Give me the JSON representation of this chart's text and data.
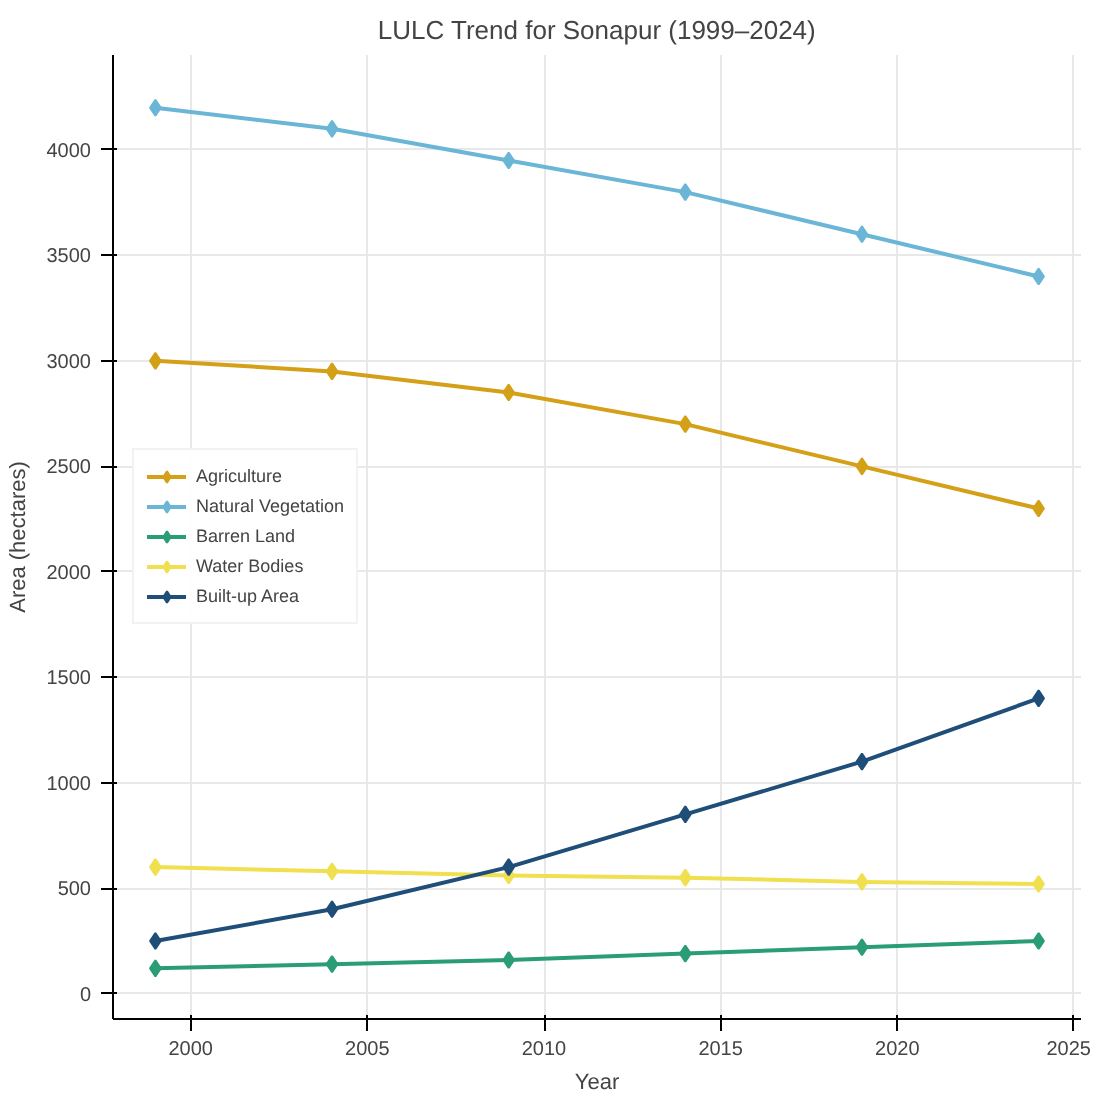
{
  "chart_data": {
    "type": "line",
    "title": "LULC Trend for Sonapur (1999–2024)",
    "xlabel": "Year",
    "ylabel": "Area (hectares)",
    "x": [
      1999,
      2004,
      2009,
      2014,
      2019,
      2024
    ],
    "series": [
      {
        "name": "Agriculture",
        "color": "#d4a017",
        "values": [
          3000,
          2950,
          2850,
          2700,
          2500,
          2300
        ]
      },
      {
        "name": "Natural Vegetation",
        "color": "#6bb6d6",
        "values": [
          4200,
          4100,
          3950,
          3800,
          3600,
          3400
        ]
      },
      {
        "name": "Barren Land",
        "color": "#2a9d76",
        "values": [
          120,
          140,
          160,
          190,
          220,
          250
        ]
      },
      {
        "name": "Water Bodies",
        "color": "#f0e050",
        "values": [
          600,
          580,
          560,
          550,
          530,
          520
        ]
      },
      {
        "name": "Built-up Area",
        "color": "#1f4e79",
        "values": [
          250,
          400,
          600,
          850,
          1100,
          1400
        ]
      }
    ],
    "xlim": [
      1997.8,
      2025.2
    ],
    "ylim": [
      -120,
      4450
    ],
    "xticks": [
      2000,
      2005,
      2010,
      2015,
      2020,
      2025
    ],
    "yticks": [
      0,
      500,
      1000,
      1500,
      2000,
      2500,
      3000,
      3500,
      4000
    ],
    "grid": true,
    "legend": "left",
    "marker": "diamond",
    "line_style": "solid"
  }
}
